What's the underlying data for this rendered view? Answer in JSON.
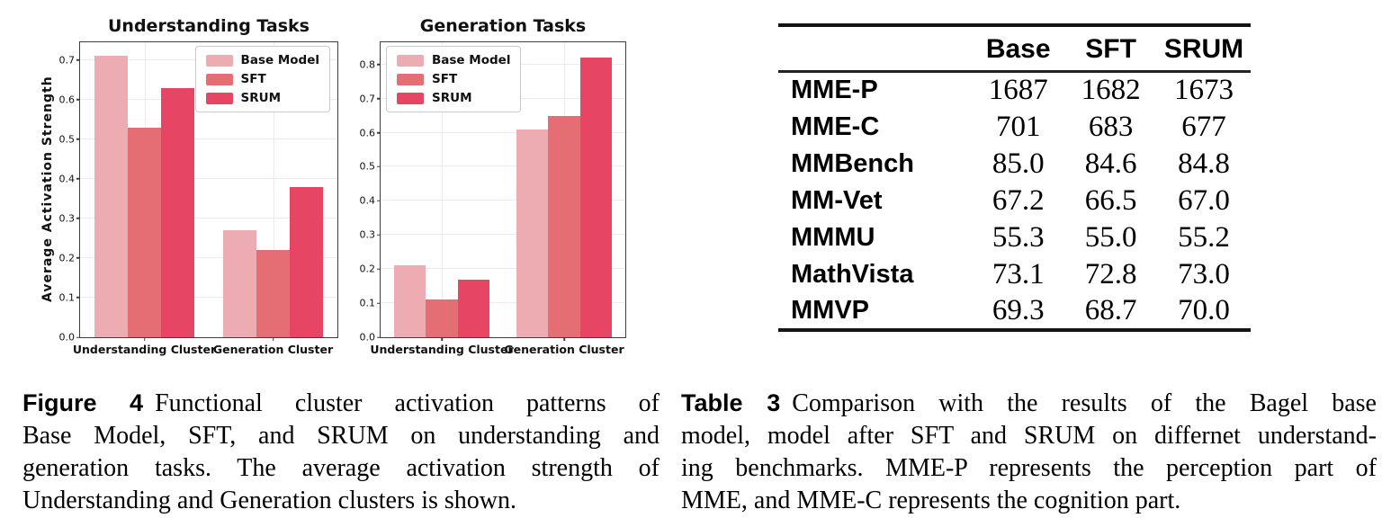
{
  "page": {
    "background": "#ffffff"
  },
  "figure": {
    "caption_label": "Figure 4",
    "caption_lines": [
      "Functional cluster activation patterns of",
      "Base Model, SFT, and SRUM on understanding and",
      "generation tasks. The average activation strength of",
      "Understanding and Generation clusters is shown."
    ]
  },
  "table": {
    "caption_label": "Table 3",
    "caption_lines": [
      "Comparison with the results of the Bagel base",
      "model, model after SFT and SRUM on differnet understand-",
      "ing benchmarks. MME-P represents the perception part of",
      "MME, and MME-C represents the cognition part."
    ],
    "columns": [
      "Base",
      "SFT",
      "SRUM"
    ],
    "rows": [
      {
        "label": "MME-P",
        "values": [
          "1687",
          "1682",
          "1673"
        ]
      },
      {
        "label": "MME-C",
        "values": [
          "701",
          "683",
          "677"
        ]
      },
      {
        "label": "MMBench",
        "values": [
          "85.0",
          "84.6",
          "84.8"
        ]
      },
      {
        "label": "MM-Vet",
        "values": [
          "67.2",
          "66.5",
          "67.0"
        ]
      },
      {
        "label": "MMMU",
        "values": [
          "55.3",
          "55.0",
          "55.2"
        ]
      },
      {
        "label": "MathVista",
        "values": [
          "73.1",
          "72.8",
          "73.0"
        ]
      },
      {
        "label": "MMVP",
        "values": [
          "69.3",
          "68.7",
          "70.0"
        ]
      }
    ]
  },
  "colors": {
    "base_model": "#ecacb1",
    "sft": "#e56e74",
    "srum": "#e64563",
    "grid": "#f1e9e9",
    "spine": "#3d3d3d"
  },
  "chart_data": [
    {
      "type": "bar",
      "title": "Understanding Tasks",
      "ylabel": "Average Activation Strength",
      "xlabel": "",
      "categories": [
        "Understanding Cluster",
        "Generation Cluster"
      ],
      "series": [
        {
          "name": "Base Model",
          "color": "#ecacb1",
          "values": [
            0.71,
            0.27
          ]
        },
        {
          "name": "SFT",
          "color": "#e56e74",
          "values": [
            0.53,
            0.22
          ]
        },
        {
          "name": "SRUM",
          "color": "#e64563",
          "values": [
            0.63,
            0.38
          ]
        }
      ],
      "ylim": [
        0,
        0.745
      ],
      "yticks": [
        0.0,
        0.1,
        0.2,
        0.3,
        0.4,
        0.5,
        0.6,
        0.7
      ],
      "legend_position": "top-right",
      "grid": true
    },
    {
      "type": "bar",
      "title": "Generation Tasks",
      "ylabel": "",
      "xlabel": "",
      "categories": [
        "Understanding Cluster",
        "Generation Cluster"
      ],
      "series": [
        {
          "name": "Base Model",
          "color": "#ecacb1",
          "values": [
            0.21,
            0.61
          ]
        },
        {
          "name": "SFT",
          "color": "#e56e74",
          "values": [
            0.11,
            0.65
          ]
        },
        {
          "name": "SRUM",
          "color": "#e64563",
          "values": [
            0.17,
            0.82
          ]
        }
      ],
      "ylim": [
        0,
        0.865
      ],
      "yticks": [
        0.0,
        0.1,
        0.2,
        0.3,
        0.4,
        0.5,
        0.6,
        0.7,
        0.8
      ],
      "legend_position": "top-left",
      "grid": true
    }
  ]
}
